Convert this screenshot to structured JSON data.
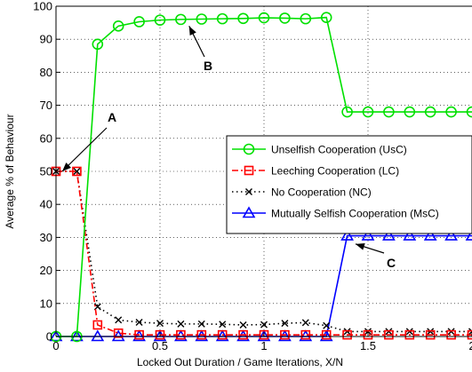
{
  "chart_data": {
    "type": "line",
    "xlabel": "Locked Out Duration / Game Iterations, X/N",
    "ylabel": "Average % of Behaviour",
    "xlim": [
      0,
      2.0
    ],
    "ylim": [
      0,
      100
    ],
    "x_ticks": [
      0,
      0.5,
      1,
      1.5,
      2
    ],
    "x_tick_labels": [
      "0",
      "0.5",
      "1",
      "1.5",
      "2"
    ],
    "y_ticks": [
      0,
      10,
      20,
      30,
      40,
      50,
      60,
      70,
      80,
      90,
      100
    ],
    "y_tick_labels": [
      "0",
      "10",
      "20",
      "30",
      "40",
      "50",
      "60",
      "70",
      "80",
      "90",
      "100"
    ],
    "grid": true,
    "legend_position": "center-right",
    "x": [
      0,
      0.1,
      0.2,
      0.3,
      0.4,
      0.5,
      0.6,
      0.7,
      0.8,
      0.9,
      1.0,
      1.1,
      1.2,
      1.3,
      1.4,
      1.5,
      1.6,
      1.7,
      1.8,
      1.9,
      2.0
    ],
    "series": [
      {
        "name": "Unselfish Cooperation (UsC)",
        "color": "#00e000",
        "line_style": "solid",
        "marker": "circle",
        "values": [
          0,
          0,
          88.5,
          94,
          95.3,
          95.8,
          96,
          96.1,
          96.2,
          96.3,
          96.5,
          96.4,
          96.2,
          96.6,
          68,
          68,
          68,
          68,
          68,
          68,
          68
        ]
      },
      {
        "name": "Leeching Cooperation (LC)",
        "color": "#ff0000",
        "line_style": "dash-dot",
        "marker": "square",
        "values": [
          50,
          50,
          3.5,
          1,
          0.5,
          0.5,
          0.5,
          0.5,
          0.5,
          0.5,
          0.5,
          0.5,
          0.5,
          0.5,
          0.5,
          0.5,
          0.5,
          0.5,
          0.5,
          0.5,
          0.5
        ]
      },
      {
        "name": "No Cooperation (NC)",
        "color": "#000000",
        "line_style": "dotted",
        "marker": "x",
        "values": [
          50,
          50,
          9,
          5,
          4.3,
          4,
          3.8,
          3.8,
          3.7,
          3.5,
          3.6,
          4,
          4.2,
          3.3,
          1.5,
          1.5,
          1.5,
          1.5,
          1.5,
          1.5,
          1.5
        ]
      },
      {
        "name": "Mutually Selfish Cooperation (MsC)",
        "color": "#0000ff",
        "line_style": "solid",
        "marker": "triangle",
        "values": [
          0,
          0,
          0,
          0,
          0,
          0,
          0,
          0,
          0,
          0,
          0,
          0,
          0,
          0,
          30.5,
          30.5,
          30.5,
          30.5,
          30.5,
          30.5,
          30.5
        ]
      }
    ],
    "annotations": [
      {
        "label": "A",
        "points_to": [
          0.03,
          50
        ]
      },
      {
        "label": "B",
        "points_to": [
          0.64,
          94
        ]
      },
      {
        "label": "C",
        "points_to": [
          1.44,
          28
        ]
      }
    ]
  }
}
